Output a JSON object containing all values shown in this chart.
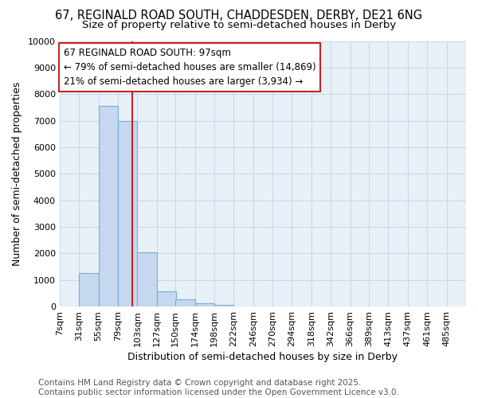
{
  "title1": "67, REGINALD ROAD SOUTH, CHADDESDEN, DERBY, DE21 6NG",
  "title2": "Size of property relative to semi-detached houses in Derby",
  "xlabel": "Distribution of semi-detached houses by size in Derby",
  "ylabel": "Number of semi-detached properties",
  "bins": [
    "7sqm",
    "31sqm",
    "55sqm",
    "79sqm",
    "103sqm",
    "127sqm",
    "150sqm",
    "174sqm",
    "198sqm",
    "222sqm",
    "246sqm",
    "270sqm",
    "294sqm",
    "318sqm",
    "342sqm",
    "366sqm",
    "389sqm",
    "413sqm",
    "437sqm",
    "461sqm",
    "485sqm"
  ],
  "bin_edges": [
    7,
    31,
    55,
    79,
    103,
    127,
    150,
    174,
    198,
    222,
    246,
    270,
    294,
    318,
    342,
    366,
    389,
    413,
    437,
    461,
    485
  ],
  "bar_heights": [
    10,
    1250,
    7550,
    7000,
    2050,
    575,
    275,
    120,
    60,
    10,
    0,
    0,
    0,
    0,
    0,
    0,
    0,
    0,
    0,
    0
  ],
  "bar_color": "#c5d8ef",
  "bar_edge_color": "#7aafd4",
  "property_size": 97,
  "vline_color": "#cc2222",
  "annotation_line1": "67 REGINALD ROAD SOUTH: 97sqm",
  "annotation_line2": "← 79% of semi-detached houses are smaller (14,869)",
  "annotation_line3": "21% of semi-detached houses are larger (3,934) →",
  "annotation_box_color": "#ffffff",
  "annotation_border_color": "#cc2222",
  "ylim": [
    0,
    10000
  ],
  "yticks": [
    0,
    1000,
    2000,
    3000,
    4000,
    5000,
    6000,
    7000,
    8000,
    9000,
    10000
  ],
  "grid_color": "#c8d8e8",
  "bg_color": "#e8f0f8",
  "footer1": "Contains HM Land Registry data © Crown copyright and database right 2025.",
  "footer2": "Contains public sector information licensed under the Open Government Licence v3.0.",
  "title_fontsize": 10.5,
  "subtitle_fontsize": 9.5,
  "axis_fontsize": 9,
  "tick_fontsize": 8,
  "footer_fontsize": 7.5,
  "annot_fontsize": 8.5
}
